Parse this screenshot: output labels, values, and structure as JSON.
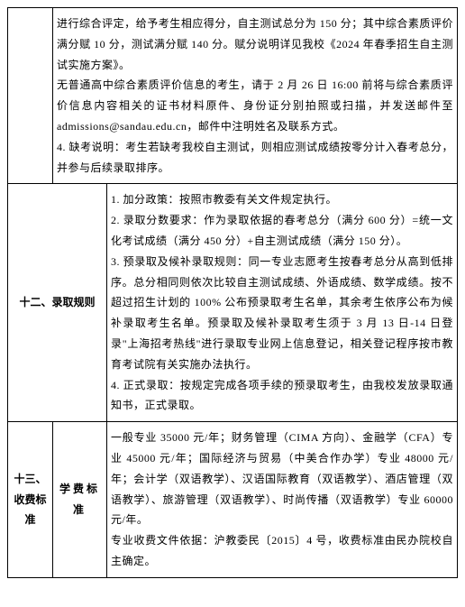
{
  "row1": {
    "content": "进行综合评定，给予考生相应得分，自主测试总分为 150 分；其中综合素质评价满分赋 10 分，测试满分赋 140 分。赋分说明详见我校《2024 年春季招生自主测试实施方案》。\n无普通高中综合素质评价信息的考生，请于 2 月 26 日 16:00 前将与综合素质评价信息内容相关的证书材料原件、身份证分别拍照或扫描，并发送邮件至 admissions@sandau.edu.cn，邮件中注明姓名及联系方式。\n4. 缺考说明：考生若缺考我校自主测试，则相应测试成绩按零分计入春考总分，并参与后续录取排序。"
  },
  "row2": {
    "label": "十二、录取规则",
    "content": "1. 加分政策：按照市教委有关文件规定执行。\n2. 录取分数要求：作为录取依据的春考总分（满分 600 分）=统一文化考试成绩（满分 450 分）+自主测试成绩（满分 150 分）。\n3. 预录取及候补录取规则：同一专业志愿考生按春考总分从高到低排序。总分相同则依次比较自主测试成绩、外语成绩、数学成绩。按不超过招生计划的 100% 公布预录取考生名单，其余考生依序公布为候补录取考生名单。预录取及候补录取考生须于 3 月 13 日-14 日登录\"上海招考热线\"进行录取专业网上信息登记，相关登记程序按市教育考试院有关实施办法执行。\n4. 正式录取：按规定完成各项手续的预录取考生，由我校发放录取通知书，正式录取。"
  },
  "row3": {
    "label": "十三、收费标准",
    "sublabel": "学费标准",
    "content": "一般专业 35000 元/年；财务管理（CIMA 方向）、金融学（CFA）专业 45000 元/年；国际经济与贸易（中美合作办学）专业 48000 元/年；会计学（双语教学）、汉语国际教育（双语教学）、酒店管理（双语教学）、旅游管理（双语教学）、时尚传播（双语教学）专业 60000 元/年。\n专业收费文件依据：沪教委民〔2015〕4 号，收费标准由民办院校自主确定。"
  },
  "colors": {
    "border": "#000000",
    "bg": "#ffffff",
    "text": "#000000"
  }
}
